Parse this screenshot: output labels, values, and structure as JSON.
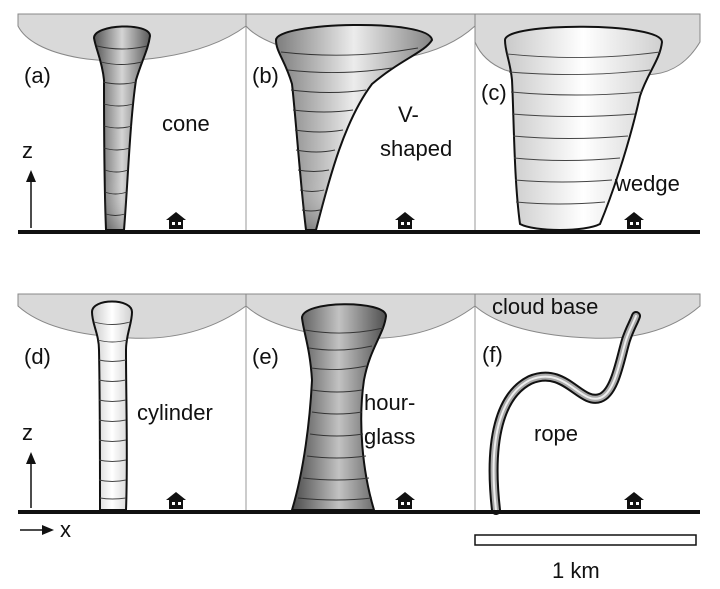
{
  "panels": [
    {
      "id": "a",
      "label": "(a)",
      "type_lines": [
        "cone"
      ]
    },
    {
      "id": "b",
      "label": "(b)",
      "type_lines": [
        "V-",
        "shaped"
      ]
    },
    {
      "id": "c",
      "label": "(c)",
      "type_lines": [
        "wedge"
      ]
    },
    {
      "id": "d",
      "label": "(d)",
      "type_lines": [
        "cylinder"
      ]
    },
    {
      "id": "e",
      "label": "(e)",
      "type_lines": [
        "hour-",
        "glass"
      ]
    },
    {
      "id": "f",
      "label": "(f)",
      "type_lines": [
        "rope"
      ]
    }
  ],
  "cloud_base_label": "cloud base",
  "axis": {
    "vertical": "z",
    "horizontal": "x"
  },
  "scale_bar": {
    "label": "1 km"
  },
  "colors": {
    "ground": "#111111",
    "cloud": "#d9d9d9",
    "divider": "#9a9a9a",
    "funnel_light": "#fafafa",
    "funnel_dark": "#5e5e5e"
  }
}
